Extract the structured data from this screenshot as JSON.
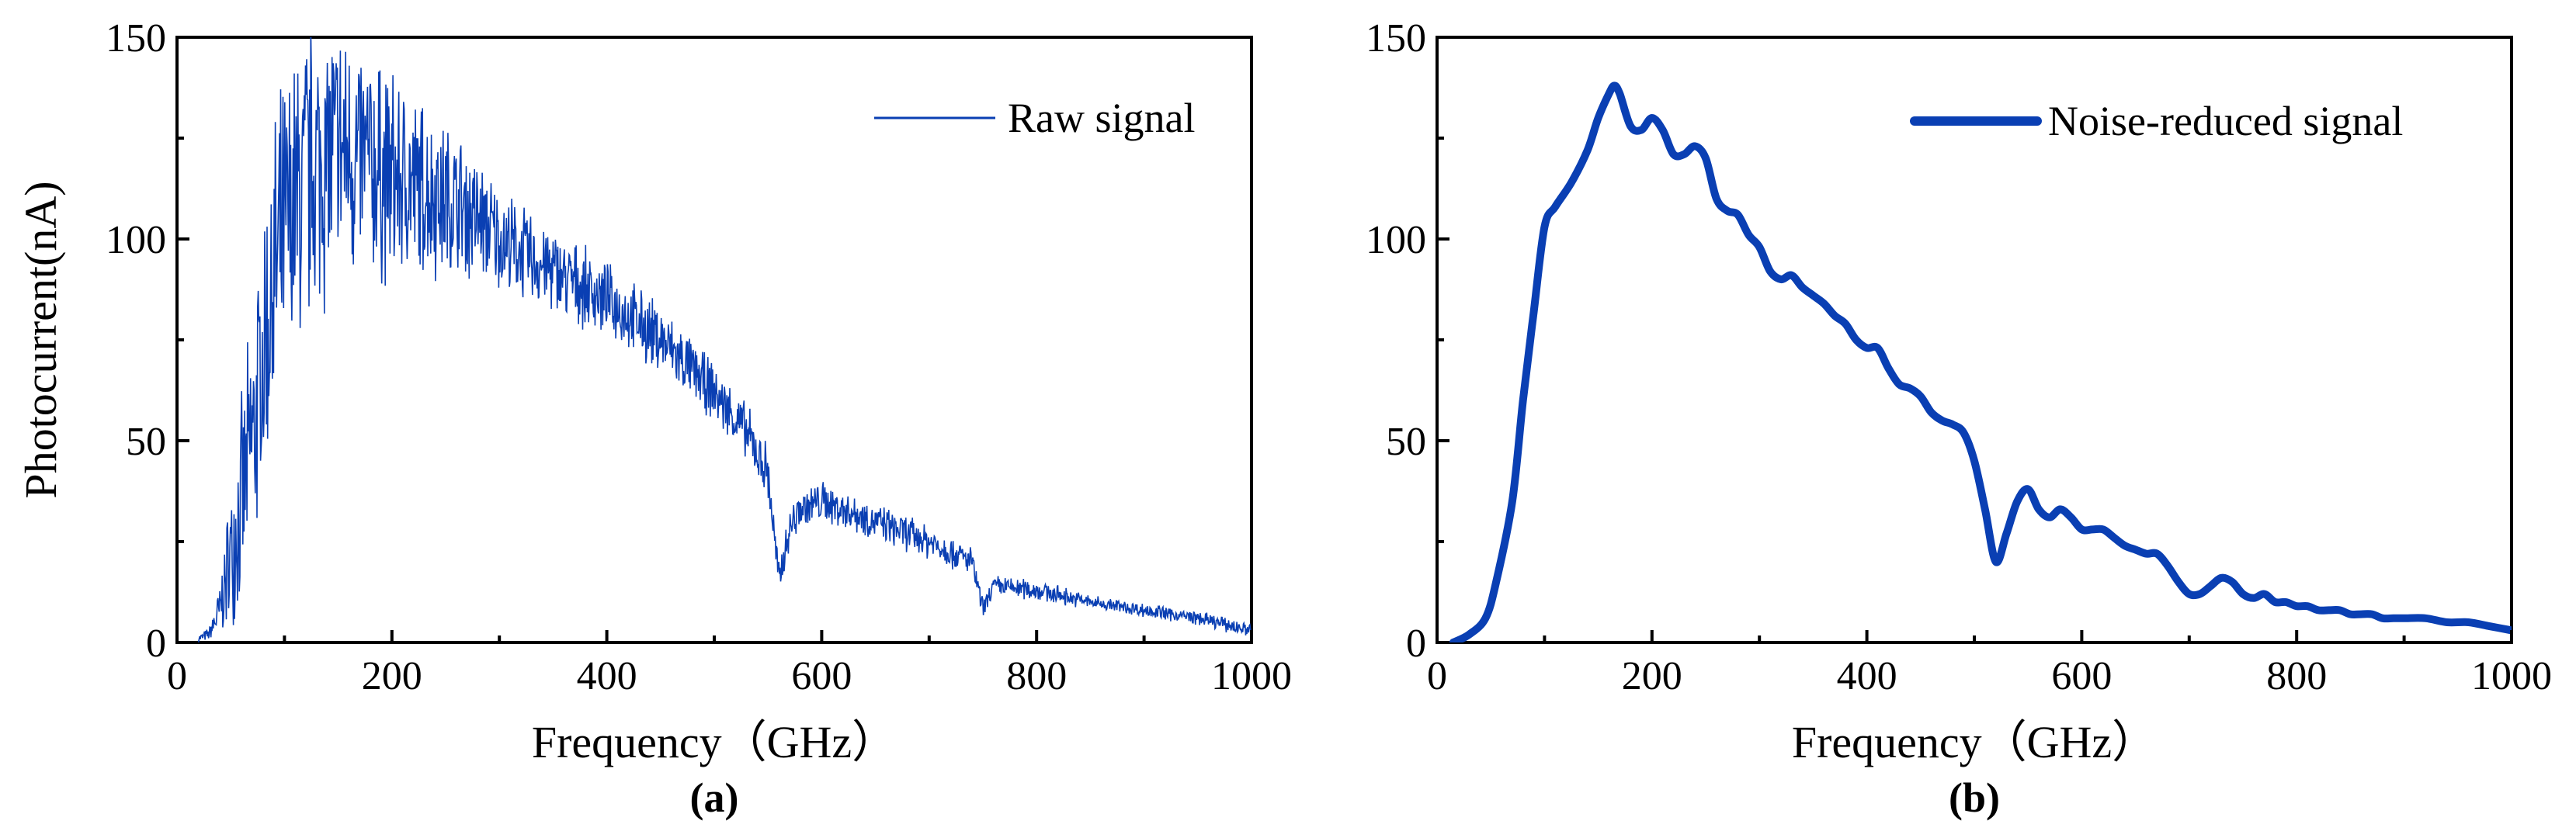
{
  "chart_data": [
    {
      "type": "line",
      "panel_label": "(a)",
      "xlabel": "Frequency（GHz）",
      "ylabel": "Photocurrent(nA)",
      "xlim": [
        0,
        1000
      ],
      "ylim": [
        0,
        150
      ],
      "xticks": [
        0,
        200,
        400,
        600,
        800,
        1000
      ],
      "yticks": [
        0,
        50,
        100,
        150
      ],
      "legend_position": "top-right",
      "series": [
        {
          "name": "Raw signal",
          "color": "#0a3fb3",
          "style": "thin-noisy",
          "envelope": {
            "x": [
              20,
              30,
              40,
              50,
              60,
              70,
              80,
              90,
              100,
              120,
              150,
              200,
              250,
              280,
              300,
              350,
              400,
              450,
              500,
              530,
              550,
              560,
              570,
              580,
              600,
              650,
              700,
              740,
              750,
              760,
              800,
              850,
              900,
              950,
              1000
            ],
            "center": [
              1,
              2,
              8,
              22,
              35,
              50,
              70,
              90,
              100,
              115,
              122,
              115,
              110,
              105,
              100,
              92,
              85,
              75,
              62,
              52,
              42,
              15,
              28,
              33,
              35,
              30,
              25,
              20,
              8,
              14,
              13,
              10,
              8,
              6,
              3
            ],
            "spread": [
              1,
              2,
              8,
              20,
              28,
              35,
              40,
              45,
              45,
              45,
              38,
              30,
              22,
              18,
              14,
              12,
              10,
              10,
              8,
              8,
              8,
              6,
              6,
              6,
              6,
              5,
              5,
              4,
              3,
              3,
              3,
              2,
              2,
              2,
              2
            ]
          }
        }
      ]
    },
    {
      "type": "line",
      "panel_label": "(b)",
      "xlabel": "Frequency（GHz）",
      "ylabel": "",
      "xlim": [
        0,
        1000
      ],
      "ylim": [
        0,
        150
      ],
      "xticks": [
        0,
        200,
        400,
        600,
        800,
        1000
      ],
      "yticks": [
        0,
        50,
        100,
        150
      ],
      "legend_position": "top-right",
      "series": [
        {
          "name": "Noise-reduced signal",
          "color": "#0a3fb3",
          "style": "thick-smooth",
          "x": [
            15,
            30,
            45,
            55,
            70,
            80,
            90,
            100,
            110,
            125,
            140,
            150,
            160,
            165,
            170,
            180,
            190,
            200,
            210,
            220,
            230,
            240,
            250,
            260,
            270,
            280,
            290,
            300,
            310,
            320,
            330,
            340,
            350,
            360,
            370,
            380,
            390,
            400,
            410,
            420,
            430,
            440,
            450,
            460,
            470,
            480,
            490,
            500,
            510,
            520,
            530,
            540,
            550,
            560,
            570,
            580,
            590,
            600,
            610,
            620,
            630,
            640,
            650,
            660,
            670,
            680,
            690,
            700,
            710,
            720,
            730,
            740,
            750,
            760,
            770,
            780,
            790,
            800,
            810,
            820,
            830,
            840,
            850,
            860,
            870,
            880,
            890,
            900,
            920,
            940,
            960,
            980,
            1000
          ],
          "values": [
            0,
            2,
            6,
            15,
            35,
            60,
            82,
            103,
            108,
            114,
            122,
            130,
            136,
            138,
            136,
            128,
            127,
            130,
            127,
            121,
            121,
            123,
            120,
            110,
            107,
            106,
            101,
            98,
            92,
            90,
            91,
            88,
            86,
            84,
            81,
            79,
            75,
            73,
            73,
            68,
            64,
            63,
            61,
            57,
            55,
            54,
            52,
            45,
            33,
            20,
            27,
            35,
            38,
            33,
            31,
            33,
            31,
            28,
            28,
            28,
            26,
            24,
            23,
            22,
            22,
            19,
            15,
            12,
            12,
            14,
            16,
            15,
            12,
            11,
            12,
            10,
            10,
            9,
            9,
            8,
            8,
            8,
            7,
            7,
            7,
            6,
            6,
            6,
            6,
            5,
            5,
            4,
            3
          ]
        }
      ]
    }
  ]
}
